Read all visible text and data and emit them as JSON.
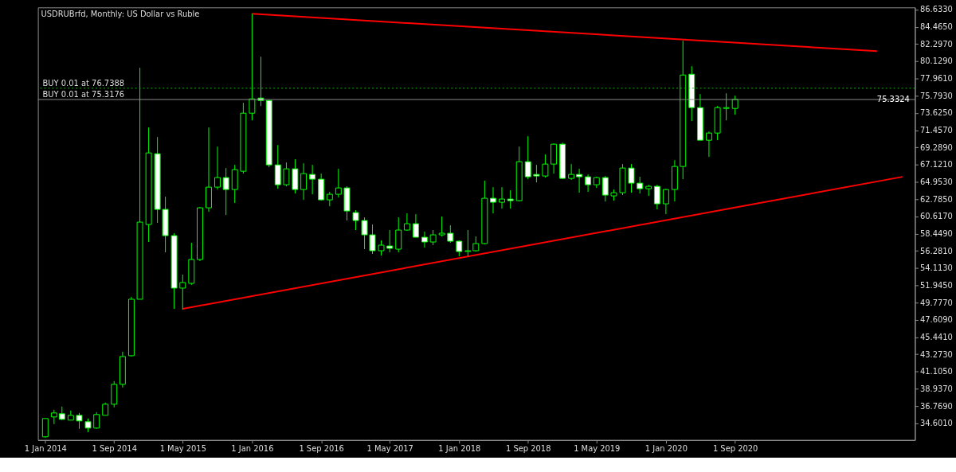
{
  "chart_data": {
    "type": "candlestick",
    "title": "USDRUBrfd, Monthly:  US Dollar vs Ruble",
    "xlim": [
      "2013-12-20",
      "2022-05-15"
    ],
    "xticks": [
      {
        "value": "2014-01-01",
        "label": "1 Jan 2014"
      },
      {
        "value": "2014-09-01",
        "label": "1 Sep 2014"
      },
      {
        "value": "2015-05-01",
        "label": "1 May 2015"
      },
      {
        "value": "2016-01-01",
        "label": "1 Jan 2016"
      },
      {
        "value": "2016-09-01",
        "label": "1 Sep 2016"
      },
      {
        "value": "2017-05-01",
        "label": "1 May 2017"
      },
      {
        "value": "2018-01-01",
        "label": "1 Jan 2018"
      },
      {
        "value": "2018-09-01",
        "label": "1 Sep 2018"
      },
      {
        "value": "2019-05-01",
        "label": "1 May 2019"
      },
      {
        "value": "2020-01-01",
        "label": "1 Jan 2020"
      },
      {
        "value": "2020-09-01",
        "label": "1 Sep 2020"
      }
    ],
    "ylim": [
      32.5,
      86.9
    ],
    "yticks": [
      {
        "value": 34.601,
        "label": "34.6010"
      },
      {
        "value": 36.769,
        "label": "36.7690"
      },
      {
        "value": 38.937,
        "label": "38.9370"
      },
      {
        "value": 41.105,
        "label": "41.1050"
      },
      {
        "value": 43.273,
        "label": "43.2730"
      },
      {
        "value": 45.441,
        "label": "45.4410"
      },
      {
        "value": 47.609,
        "label": "47.6090"
      },
      {
        "value": 49.777,
        "label": "49.7770"
      },
      {
        "value": 51.945,
        "label": "51.9450"
      },
      {
        "value": 54.113,
        "label": "54.1130"
      },
      {
        "value": 56.281,
        "label": "56.2810"
      },
      {
        "value": 58.449,
        "label": "58.4490"
      },
      {
        "value": 60.617,
        "label": "60.6170"
      },
      {
        "value": 62.785,
        "label": "62.7850"
      },
      {
        "value": 64.953,
        "label": "64.9530"
      },
      {
        "value": 67.121,
        "label": "67.1210"
      },
      {
        "value": 69.289,
        "label": "69.2890"
      },
      {
        "value": 71.457,
        "label": "71.4570"
      },
      {
        "value": 73.625,
        "label": "73.6250"
      },
      {
        "value": 75.793,
        "label": "75.7930"
      },
      {
        "value": 77.961,
        "label": "77.9610"
      },
      {
        "value": 80.129,
        "label": "80.1290"
      },
      {
        "value": 82.297,
        "label": "82.2970"
      },
      {
        "value": 84.465,
        "label": "84.4650"
      },
      {
        "value": 86.633,
        "label": "86.6330"
      }
    ],
    "grid": false,
    "series": [
      {
        "type": "line",
        "color": "#ff0000",
        "x": [
          "2016-01",
          "2022-01-15"
        ],
        "values": [
          86.1,
          81.4
        ]
      },
      {
        "type": "line",
        "color": "#ff0000",
        "x": [
          "2015-05",
          "2022-04-15"
        ],
        "values": [
          49.0,
          65.6
        ]
      },
      {
        "color": "#00ff00",
        "x": [
          "2014-01",
          "2014-02",
          "2014-03",
          "2014-04",
          "2014-05",
          "2014-06",
          "2014-07",
          "2014-08",
          "2014-09",
          "2014-10",
          "2014-11",
          "2014-12",
          "2015-01",
          "2015-02",
          "2015-03",
          "2015-04",
          "2015-05",
          "2015-06",
          "2015-07",
          "2015-08",
          "2015-09",
          "2015-10",
          "2015-11",
          "2015-12",
          "2016-01",
          "2016-02",
          "2016-03",
          "2016-04",
          "2016-05",
          "2016-06",
          "2016-07",
          "2016-08",
          "2016-09",
          "2016-10",
          "2016-11",
          "2016-12",
          "2017-01",
          "2017-02",
          "2017-03",
          "2017-04",
          "2017-05",
          "2017-06",
          "2017-07",
          "2017-08",
          "2017-09",
          "2017-10",
          "2017-11",
          "2017-12",
          "2018-01",
          "2018-02",
          "2018-03",
          "2018-04",
          "2018-05",
          "2018-06",
          "2018-07",
          "2018-08",
          "2018-09",
          "2018-10",
          "2018-11",
          "2018-12",
          "2019-01",
          "2019-02",
          "2019-03",
          "2019-04",
          "2019-05",
          "2019-06",
          "2019-07",
          "2019-08",
          "2019-09",
          "2019-10",
          "2019-11",
          "2019-12",
          "2020-01",
          "2020-02",
          "2020-03",
          "2020-04",
          "2020-05",
          "2020-06",
          "2020-07",
          "2020-08",
          "2020-09"
        ],
        "ohlc": [
          [
            32.9,
            35.2,
            32.8,
            35.2
          ],
          [
            35.4,
            36.3,
            34.5,
            35.9
          ],
          [
            35.8,
            36.7,
            35.0,
            35.1
          ],
          [
            35.0,
            36.2,
            35.0,
            35.6
          ],
          [
            35.6,
            35.9,
            33.9,
            34.9
          ],
          [
            34.8,
            35.2,
            33.5,
            34.0
          ],
          [
            34.0,
            36.0,
            33.9,
            35.7
          ],
          [
            35.6,
            37.2,
            35.6,
            37.0
          ],
          [
            37.0,
            39.9,
            36.6,
            39.5
          ],
          [
            39.5,
            43.6,
            39.1,
            43.0
          ],
          [
            43.1,
            50.5,
            43.0,
            50.2
          ],
          [
            50.2,
            79.3,
            50.2,
            59.9
          ],
          [
            59.6,
            71.8,
            57.4,
            68.6
          ],
          [
            68.5,
            70.6,
            59.8,
            61.5
          ],
          [
            61.5,
            63.1,
            56.1,
            58.2
          ],
          [
            58.2,
            58.5,
            49.0,
            51.6
          ],
          [
            51.6,
            53.3,
            48.9,
            52.3
          ],
          [
            52.2,
            57.3,
            52.0,
            55.2
          ],
          [
            55.2,
            61.8,
            55.0,
            61.7
          ],
          [
            61.7,
            71.8,
            61.2,
            64.3
          ],
          [
            64.3,
            69.4,
            64.0,
            65.5
          ],
          [
            65.5,
            66.7,
            60.8,
            64.0
          ],
          [
            64.0,
            67.1,
            62.3,
            66.5
          ],
          [
            66.3,
            74.9,
            66.0,
            73.6
          ],
          [
            73.6,
            86.1,
            72.7,
            75.4
          ],
          [
            75.5,
            80.7,
            74.5,
            75.2
          ],
          [
            75.2,
            75.2,
            66.8,
            67.1
          ],
          [
            67.1,
            69.6,
            64.1,
            64.6
          ],
          [
            64.6,
            67.4,
            64.4,
            66.6
          ],
          [
            66.6,
            67.8,
            63.5,
            64.0
          ],
          [
            64.0,
            67.3,
            62.7,
            66.0
          ],
          [
            65.9,
            67.1,
            63.4,
            65.3
          ],
          [
            65.3,
            66.0,
            62.6,
            62.7
          ],
          [
            62.7,
            63.7,
            61.9,
            63.4
          ],
          [
            63.4,
            66.6,
            63.0,
            64.2
          ],
          [
            64.2,
            64.4,
            60.1,
            61.3
          ],
          [
            61.1,
            61.4,
            58.9,
            60.1
          ],
          [
            60.1,
            60.5,
            56.5,
            58.3
          ],
          [
            58.3,
            59.6,
            55.9,
            56.3
          ],
          [
            56.3,
            57.6,
            55.7,
            57.0
          ],
          [
            56.9,
            58.9,
            56.1,
            56.6
          ],
          [
            56.5,
            60.5,
            56.1,
            58.9
          ],
          [
            58.9,
            61.0,
            58.8,
            59.7
          ],
          [
            59.7,
            60.9,
            58.0,
            58.0
          ],
          [
            58.0,
            58.7,
            56.7,
            57.4
          ],
          [
            57.4,
            58.9,
            57.0,
            58.3
          ],
          [
            58.3,
            60.6,
            58.1,
            58.5
          ],
          [
            58.5,
            59.5,
            57.3,
            57.5
          ],
          [
            57.5,
            57.6,
            55.6,
            56.2
          ],
          [
            56.2,
            58.9,
            55.6,
            56.3
          ],
          [
            56.3,
            58.1,
            56.2,
            57.2
          ],
          [
            57.2,
            65.1,
            57.1,
            62.9
          ],
          [
            62.9,
            64.3,
            61.0,
            62.4
          ],
          [
            62.4,
            64.3,
            61.6,
            62.8
          ],
          [
            62.8,
            63.9,
            61.6,
            62.6
          ],
          [
            62.6,
            69.4,
            62.5,
            67.5
          ],
          [
            67.5,
            70.7,
            65.3,
            65.6
          ],
          [
            65.9,
            67.1,
            64.9,
            65.7
          ],
          [
            65.7,
            68.4,
            65.5,
            67.2
          ],
          [
            67.2,
            69.8,
            66.0,
            69.7
          ],
          [
            69.7,
            69.9,
            65.3,
            65.4
          ],
          [
            65.4,
            67.2,
            65.2,
            65.9
          ],
          [
            65.9,
            66.6,
            63.6,
            65.6
          ],
          [
            65.6,
            65.9,
            63.7,
            64.6
          ],
          [
            64.6,
            65.6,
            64.2,
            65.5
          ],
          [
            65.5,
            65.7,
            62.5,
            63.3
          ],
          [
            63.2,
            64.0,
            62.6,
            63.6
          ],
          [
            63.6,
            67.2,
            63.3,
            66.7
          ],
          [
            66.7,
            67.2,
            63.6,
            64.8
          ],
          [
            64.8,
            65.6,
            63.5,
            64.1
          ],
          [
            64.1,
            64.6,
            63.2,
            64.4
          ],
          [
            64.4,
            64.6,
            61.5,
            62.2
          ],
          [
            62.2,
            64.1,
            60.9,
            64.0
          ],
          [
            64.0,
            67.7,
            62.5,
            66.9
          ],
          [
            66.9,
            82.7,
            65.3,
            78.4
          ],
          [
            78.5,
            79.5,
            72.6,
            74.3
          ],
          [
            74.3,
            76.0,
            70.2,
            70.2
          ],
          [
            70.2,
            71.3,
            68.1,
            71.1
          ],
          [
            71.1,
            74.5,
            70.2,
            74.3
          ],
          [
            74.2,
            76.1,
            72.7,
            74.3
          ],
          [
            74.2,
            75.8,
            73.4,
            75.33
          ]
        ]
      }
    ],
    "ref_lines": [
      {
        "axis": "y",
        "value": 76.7388,
        "label": "BUY 0.01 at 76.7388",
        "color": "#00c000",
        "line_style": "dotted"
      },
      {
        "axis": "y",
        "value": 75.3176,
        "label": "BUY 0.01 at 75.3176",
        "color": "#8c8c8c",
        "line_style": "solid"
      }
    ],
    "annotations": [
      "75.3324"
    ]
  }
}
